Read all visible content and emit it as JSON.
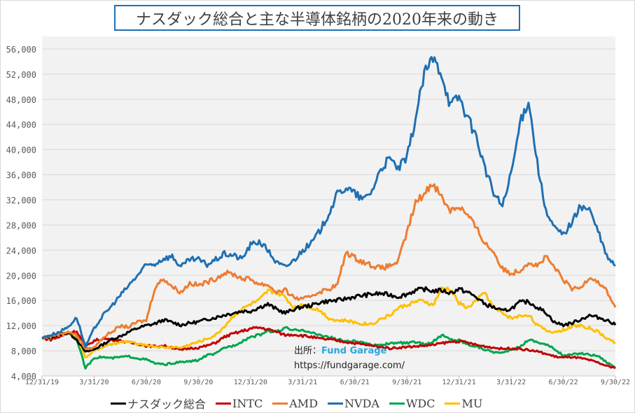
{
  "chart_data": {
    "type": "line",
    "title": "ナスダック総合と主な半導体銘柄の2020年来の動き",
    "xlabel": "",
    "ylabel": "",
    "ylim": [
      4000,
      56000
    ],
    "y_ticks": [
      4000,
      8000,
      12000,
      16000,
      20000,
      24000,
      28000,
      32000,
      36000,
      40000,
      44000,
      48000,
      52000,
      56000
    ],
    "y_tick_labels": [
      "4,000",
      "8,000",
      "12,000",
      "16,000",
      "20,000",
      "24,000",
      "28,000",
      "32,000",
      "36,000",
      "40,000",
      "44,000",
      "48,000",
      "52,000",
      "56,000"
    ],
    "x_unit": "months since 12/31/19",
    "xlim": [
      0,
      33
    ],
    "x_ticks": [
      0,
      3,
      6,
      9,
      12,
      15,
      18,
      21,
      24,
      27,
      30,
      33
    ],
    "x_tick_labels": [
      "12/31/19",
      "3/31/20",
      "6/30/20",
      "9/30/20",
      "12/31/20",
      "3/31/21",
      "6/30/21",
      "9/30/21",
      "12/31/21",
      "3/31/22",
      "6/30/22",
      "9/30/22"
    ],
    "grid": true,
    "legend_position": "bottom",
    "x": [
      0,
      0.5,
      1,
      1.5,
      2,
      2.5,
      3,
      3.5,
      4,
      4.5,
      5,
      5.5,
      6,
      6.5,
      7,
      7.5,
      8,
      8.5,
      9,
      9.5,
      10,
      10.5,
      11,
      11.5,
      12,
      12.5,
      13,
      13.5,
      14,
      14.5,
      15,
      15.5,
      16,
      16.5,
      17,
      17.5,
      18,
      18.5,
      19,
      19.5,
      20,
      20.5,
      21,
      21.5,
      22,
      22.5,
      23,
      23.5,
      24,
      24.5,
      25,
      25.5,
      26,
      26.5,
      27,
      27.5,
      28,
      28.5,
      29,
      29.5,
      30,
      30.5,
      31,
      31.5,
      32,
      32.5,
      33
    ],
    "series": [
      {
        "name": "ナスダック総合",
        "color": "#000000",
        "values": [
          10000,
          10200,
          10600,
          10900,
          9800,
          7800,
          8200,
          9000,
          9800,
          10300,
          11000,
          11600,
          12000,
          12300,
          12900,
          12500,
          12100,
          12400,
          12600,
          13000,
          13300,
          13700,
          14000,
          14300,
          14300,
          14900,
          15400,
          14600,
          14000,
          14600,
          15000,
          15200,
          15700,
          15900,
          16000,
          16300,
          16600,
          16800,
          17000,
          17100,
          16900,
          16600,
          17000,
          17600,
          17800,
          17500,
          17600,
          17200,
          17800,
          17300,
          16500,
          15400,
          14900,
          14300,
          14700,
          15700,
          15800,
          14900,
          14100,
          12500,
          12100,
          12400,
          13000,
          13600,
          13300,
          12900,
          12100
        ]
      },
      {
        "name": "INTC",
        "color": "#c00000",
        "values": [
          10000,
          9800,
          10200,
          10800,
          11100,
          8600,
          9600,
          9900,
          9800,
          9600,
          9300,
          9100,
          8800,
          8700,
          8800,
          8500,
          8100,
          8400,
          8500,
          8800,
          9300,
          10200,
          10700,
          11100,
          11500,
          11700,
          11400,
          11000,
          10500,
          10600,
          10400,
          10200,
          9900,
          9800,
          9600,
          9400,
          9200,
          9000,
          8800,
          8600,
          8400,
          8500,
          8600,
          8700,
          8800,
          8900,
          9200,
          9400,
          9500,
          9300,
          8900,
          8700,
          8500,
          8300,
          8400,
          8300,
          8100,
          7900,
          7500,
          7100,
          6900,
          7000,
          6800,
          6500,
          6100,
          5600,
          5200
        ]
      },
      {
        "name": "AMD",
        "color": "#ed7d31",
        "values": [
          10000,
          10300,
          10700,
          11000,
          10500,
          8300,
          8500,
          10100,
          11000,
          11900,
          11800,
          12600,
          12800,
          18100,
          19500,
          18200,
          17300,
          18800,
          18400,
          18900,
          19500,
          20400,
          20200,
          19500,
          19400,
          18600,
          18500,
          17300,
          17600,
          16500,
          16100,
          16800,
          17400,
          17800,
          18500,
          23700,
          22800,
          22100,
          21600,
          21100,
          21500,
          22200,
          26800,
          31500,
          33000,
          34800,
          32400,
          30400,
          31000,
          29500,
          27500,
          25100,
          23700,
          21000,
          20300,
          20800,
          22100,
          21500,
          22900,
          21200,
          19300,
          17800,
          18000,
          19800,
          19000,
          17500,
          14900
        ]
      },
      {
        "name": "NVDA",
        "color": "#1f6fb2",
        "values": [
          10000,
          10500,
          11000,
          11800,
          13300,
          8600,
          11500,
          13600,
          15100,
          16800,
          18400,
          20000,
          21600,
          21800,
          22700,
          23000,
          21300,
          22500,
          22500,
          21700,
          22500,
          23400,
          23200,
          22600,
          24800,
          25400,
          24000,
          22000,
          21300,
          22400,
          24000,
          25100,
          27100,
          29800,
          32900,
          34000,
          33000,
          32000,
          33500,
          37000,
          38500,
          37000,
          38600,
          45000,
          52000,
          54500,
          52200,
          47000,
          48500,
          45000,
          42000,
          37000,
          33000,
          31000,
          36000,
          44000,
          48000,
          38000,
          30000,
          27500,
          26500,
          28500,
          31000,
          30500,
          27000,
          23000,
          21500
        ]
      },
      {
        "name": "WDC",
        "color": "#00a550",
        "values": [
          10000,
          10300,
          10600,
          11000,
          9900,
          5200,
          6900,
          7000,
          6800,
          7000,
          7100,
          6800,
          6600,
          6000,
          5800,
          6000,
          6200,
          6300,
          6500,
          7300,
          7500,
          8500,
          8800,
          9500,
          10200,
          10500,
          11200,
          11000,
          11600,
          11200,
          11400,
          10800,
          10500,
          10200,
          9800,
          9500,
          9500,
          9200,
          8900,
          9000,
          9100,
          9300,
          9200,
          9400,
          9000,
          9400,
          10500,
          9800,
          9700,
          9000,
          8700,
          8200,
          7800,
          7600,
          8200,
          8600,
          9800,
          9400,
          9000,
          8300,
          7200,
          7400,
          7600,
          7400,
          7200,
          6200,
          5400
        ]
      },
      {
        "name": "MU",
        "color": "#ffc000",
        "values": [
          10000,
          10100,
          10500,
          10900,
          10200,
          7000,
          8000,
          8600,
          9000,
          9300,
          9500,
          9000,
          8900,
          8700,
          8500,
          8600,
          8500,
          9000,
          9400,
          9900,
          10500,
          11900,
          13500,
          14600,
          15400,
          16000,
          17500,
          17300,
          16500,
          14800,
          15500,
          14900,
          14400,
          13200,
          12800,
          12800,
          12500,
          12300,
          12300,
          13100,
          13600,
          14800,
          15300,
          15800,
          15900,
          15200,
          17900,
          17800,
          15600,
          14800,
          16000,
          17300,
          14800,
          14000,
          13200,
          13500,
          13800,
          12100,
          11200,
          11000,
          11300,
          11900,
          12000,
          11600,
          11000,
          10000,
          9300
        ]
      }
    ]
  },
  "watermark": {
    "source_label": "出所：",
    "brand": "Fund Garage",
    "url": "https://fundgarage.com/"
  }
}
